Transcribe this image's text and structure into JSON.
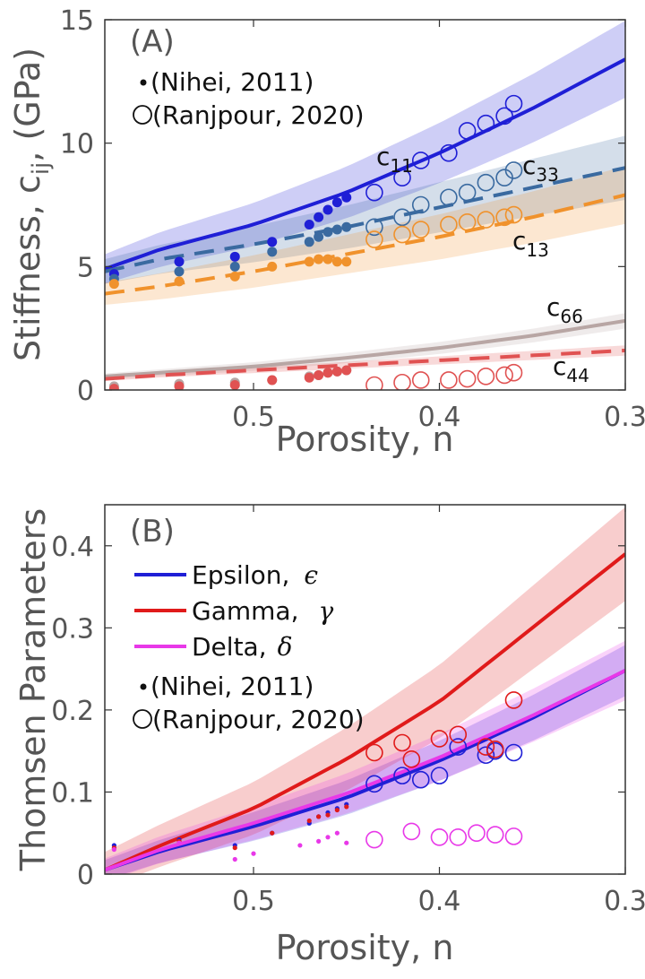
{
  "chart_data": [
    {
      "type": "line",
      "panel_label": "(A)",
      "ylabel": "Stiffness, c",
      "ylabel_sub": "ij",
      "ylabel_unit": ", (GPa)",
      "xlabel": "Porosity, n",
      "xlim": [
        0.58,
        0.3
      ],
      "ylim": [
        0,
        15
      ],
      "x_ticks": [
        "0.5",
        "0.4",
        "0.3"
      ],
      "x_tick_values": [
        0.5,
        0.4,
        0.3
      ],
      "y_ticks": [
        "0",
        "5",
        "10",
        "15"
      ],
      "y_tick_values": [
        0,
        5,
        10,
        15
      ],
      "legend": [
        {
          "marker": "dot",
          "label": "(Nihei, 2011)"
        },
        {
          "marker": "circle",
          "label": "(Ranjpour, 2020)"
        }
      ],
      "series": [
        {
          "id": "c11",
          "label": "c",
          "label_sub": "11",
          "color": "#1f1fd6",
          "dash": false,
          "model_x": [
            0.58,
            0.55,
            0.5,
            0.45,
            0.4,
            0.35,
            0.3
          ],
          "model_y": [
            4.9,
            5.7,
            6.7,
            8.0,
            9.6,
            11.4,
            13.4
          ],
          "band": 0.6,
          "nihei_x": [
            0.575,
            0.54,
            0.51,
            0.49,
            0.47,
            0.465,
            0.46,
            0.455,
            0.45
          ],
          "nihei_y": [
            4.7,
            5.2,
            5.4,
            6.0,
            6.7,
            7.0,
            7.3,
            7.6,
            7.8
          ],
          "ranj_x": [
            0.435,
            0.42,
            0.41,
            0.395,
            0.385,
            0.375,
            0.365,
            0.36
          ],
          "ranj_y": [
            8.0,
            8.6,
            9.3,
            9.6,
            10.5,
            10.8,
            11.1,
            11.6
          ]
        },
        {
          "id": "c33",
          "label": "c",
          "label_sub": "33",
          "color": "#3a6aa0",
          "dash": true,
          "model_x": [
            0.58,
            0.55,
            0.5,
            0.45,
            0.4,
            0.35,
            0.3
          ],
          "model_y": [
            4.8,
            5.3,
            5.9,
            6.6,
            7.4,
            8.2,
            9.0
          ],
          "band": 0.5,
          "nihei_x": [
            0.575,
            0.54,
            0.51,
            0.49,
            0.47,
            0.465,
            0.46,
            0.455,
            0.45
          ],
          "nihei_y": [
            4.5,
            4.8,
            5.0,
            5.6,
            6.0,
            6.2,
            6.4,
            6.5,
            6.6
          ],
          "ranj_x": [
            0.435,
            0.42,
            0.41,
            0.395,
            0.385,
            0.375,
            0.365,
            0.36
          ],
          "ranj_y": [
            6.6,
            7.0,
            7.5,
            7.8,
            8.0,
            8.4,
            8.6,
            8.9
          ]
        },
        {
          "id": "c13",
          "label": "c",
          "label_sub": "13",
          "color": "#f0922c",
          "dash": true,
          "model_x": [
            0.58,
            0.55,
            0.5,
            0.45,
            0.4,
            0.35,
            0.3
          ],
          "model_y": [
            3.9,
            4.2,
            4.8,
            5.5,
            6.2,
            7.0,
            7.9
          ],
          "band": 0.45,
          "nihei_x": [
            0.575,
            0.54,
            0.51,
            0.49,
            0.47,
            0.465,
            0.46,
            0.455,
            0.45
          ],
          "nihei_y": [
            4.3,
            4.4,
            4.6,
            5.0,
            5.2,
            5.3,
            5.3,
            5.2,
            5.2
          ],
          "ranj_x": [
            0.435,
            0.42,
            0.41,
            0.395,
            0.385,
            0.375,
            0.365,
            0.36
          ],
          "ranj_y": [
            6.1,
            6.3,
            6.5,
            6.7,
            6.8,
            6.9,
            7.0,
            7.1
          ]
        },
        {
          "id": "c66",
          "label": "c",
          "label_sub": "66",
          "color": "#b8a6a4",
          "dash": false,
          "model_x": [
            0.58,
            0.55,
            0.5,
            0.45,
            0.4,
            0.35,
            0.3
          ],
          "model_y": [
            0.55,
            0.7,
            0.95,
            1.3,
            1.7,
            2.2,
            2.8
          ],
          "band": 0.12,
          "nihei_x": [
            0.575,
            0.54,
            0.51,
            0.49,
            0.47,
            0.465,
            0.46,
            0.455,
            0.45
          ],
          "nihei_y": [
            0.15,
            0.25,
            0.3,
            0.4,
            0.55,
            0.6,
            0.7,
            0.75,
            0.8
          ],
          "ranj_x": [],
          "ranj_y": []
        },
        {
          "id": "c44",
          "label": "c",
          "label_sub": "44",
          "color": "#e05252",
          "dash": true,
          "model_x": [
            0.58,
            0.55,
            0.5,
            0.45,
            0.4,
            0.35,
            0.3
          ],
          "model_y": [
            0.45,
            0.6,
            0.8,
            1.0,
            1.2,
            1.4,
            1.6
          ],
          "band": 0.08,
          "nihei_x": [
            0.575,
            0.54,
            0.51,
            0.49,
            0.47,
            0.465,
            0.46,
            0.455,
            0.45
          ],
          "nihei_y": [
            0.05,
            0.15,
            0.2,
            0.4,
            0.5,
            0.6,
            0.7,
            0.75,
            0.8
          ],
          "ranj_x": [
            0.435,
            0.42,
            0.41,
            0.395,
            0.385,
            0.375,
            0.365,
            0.36
          ],
          "ranj_y": [
            0.2,
            0.3,
            0.4,
            0.4,
            0.45,
            0.55,
            0.6,
            0.7
          ]
        }
      ]
    },
    {
      "type": "line",
      "panel_label": "(B)",
      "ylabel": "Thomsen Parameters",
      "xlabel": "Porosity, n",
      "xlim": [
        0.58,
        0.3
      ],
      "ylim": [
        0,
        0.45
      ],
      "x_ticks": [
        "0.5",
        "0.4",
        "0.3"
      ],
      "x_tick_values": [
        0.5,
        0.4,
        0.3
      ],
      "y_ticks": [
        "0",
        "0.1",
        "0.2",
        "0.3",
        "0.4"
      ],
      "y_tick_values": [
        0,
        0.1,
        0.2,
        0.3,
        0.4
      ],
      "legend": [
        {
          "marker": "line",
          "color": "#1f1fd6",
          "label": "Epsilon,",
          "symbol": "ϵ"
        },
        {
          "marker": "line",
          "color": "#e01a1a",
          "label": "Gamma,",
          "symbol": "γ"
        },
        {
          "marker": "line",
          "color": "#e838e8",
          "label": "Delta,",
          "symbol": "δ"
        },
        {
          "marker": "dot",
          "label": "(Nihei, 2011)"
        },
        {
          "marker": "circle",
          "label": "(Ranjpour, 2020)"
        }
      ],
      "series": [
        {
          "id": "epsilon",
          "color": "#1f1fd6",
          "model_x": [
            0.58,
            0.55,
            0.5,
            0.45,
            0.4,
            0.35,
            0.3
          ],
          "model_y": [
            0.005,
            0.028,
            0.058,
            0.093,
            0.138,
            0.19,
            0.248
          ],
          "band": 0.012,
          "nihei_x": [
            0.575,
            0.54,
            0.51,
            0.49,
            0.47,
            0.465,
            0.46,
            0.455,
            0.45
          ],
          "nihei_y": [
            0.035,
            0.042,
            0.035,
            0.05,
            0.062,
            0.07,
            0.075,
            0.08,
            0.085
          ],
          "ranj_x": [
            0.435,
            0.42,
            0.41,
            0.4,
            0.39,
            0.375,
            0.37,
            0.36
          ],
          "ranj_y": [
            0.11,
            0.12,
            0.115,
            0.12,
            0.155,
            0.145,
            0.15,
            0.148
          ]
        },
        {
          "id": "gamma",
          "color": "#e01a1a",
          "model_x": [
            0.58,
            0.55,
            0.5,
            0.45,
            0.4,
            0.35,
            0.3
          ],
          "model_y": [
            0.005,
            0.035,
            0.08,
            0.14,
            0.21,
            0.3,
            0.39
          ],
          "band": 0.022,
          "nihei_x": [
            0.575,
            0.54,
            0.51,
            0.49,
            0.47,
            0.465,
            0.46,
            0.455,
            0.45
          ],
          "nihei_y": [
            0.032,
            0.04,
            0.032,
            0.05,
            0.065,
            0.07,
            0.072,
            0.078,
            0.082
          ],
          "ranj_x": [
            0.435,
            0.42,
            0.415,
            0.4,
            0.39,
            0.375,
            0.37,
            0.36
          ],
          "ranj_y": [
            0.148,
            0.16,
            0.14,
            0.165,
            0.17,
            0.155,
            0.152,
            0.212
          ]
        },
        {
          "id": "delta",
          "color": "#e838e8",
          "model_x": [
            0.58,
            0.55,
            0.5,
            0.45,
            0.4,
            0.35,
            0.3
          ],
          "model_y": [
            0.005,
            0.03,
            0.062,
            0.098,
            0.142,
            0.193,
            0.248
          ],
          "band": 0.014,
          "nihei_x": [
            0.575,
            0.54,
            0.51,
            0.5,
            0.475,
            0.465,
            0.46,
            0.455,
            0.45
          ],
          "nihei_y": [
            0.03,
            0.038,
            0.018,
            0.025,
            0.035,
            0.04,
            0.045,
            0.05,
            0.038
          ],
          "ranj_x": [
            0.435,
            0.415,
            0.4,
            0.39,
            0.38,
            0.37,
            0.36
          ],
          "ranj_y": [
            0.042,
            0.052,
            0.045,
            0.045,
            0.05,
            0.048,
            0.046
          ]
        }
      ]
    }
  ]
}
